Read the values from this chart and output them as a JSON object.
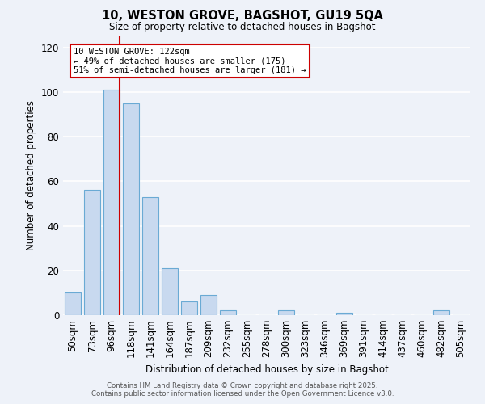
{
  "title": "10, WESTON GROVE, BAGSHOT, GU19 5QA",
  "subtitle": "Size of property relative to detached houses in Bagshot",
  "xlabel": "Distribution of detached houses by size in Bagshot",
  "ylabel": "Number of detached properties",
  "categories": [
    "50sqm",
    "73sqm",
    "96sqm",
    "118sqm",
    "141sqm",
    "164sqm",
    "187sqm",
    "209sqm",
    "232sqm",
    "255sqm",
    "278sqm",
    "300sqm",
    "323sqm",
    "346sqm",
    "369sqm",
    "391sqm",
    "414sqm",
    "437sqm",
    "460sqm",
    "482sqm",
    "505sqm"
  ],
  "values": [
    10,
    56,
    101,
    95,
    53,
    21,
    6,
    9,
    2,
    0,
    0,
    2,
    0,
    0,
    1,
    0,
    0,
    0,
    0,
    2,
    0
  ],
  "bar_color": "#c8d9ef",
  "bar_edge_color": "#6aaad4",
  "vline_x_index": 2,
  "vline_color": "#cc0000",
  "ylim": [
    0,
    125
  ],
  "yticks": [
    0,
    20,
    40,
    60,
    80,
    100,
    120
  ],
  "annotation_text": "10 WESTON GROVE: 122sqm\n← 49% of detached houses are smaller (175)\n51% of semi-detached houses are larger (181) →",
  "annotation_box_color": "#ffffff",
  "annotation_box_edge": "#cc0000",
  "footer_line1": "Contains HM Land Registry data © Crown copyright and database right 2025.",
  "footer_line2": "Contains public sector information licensed under the Open Government Licence v3.0.",
  "background_color": "#eef2f9",
  "grid_color": "#ffffff"
}
